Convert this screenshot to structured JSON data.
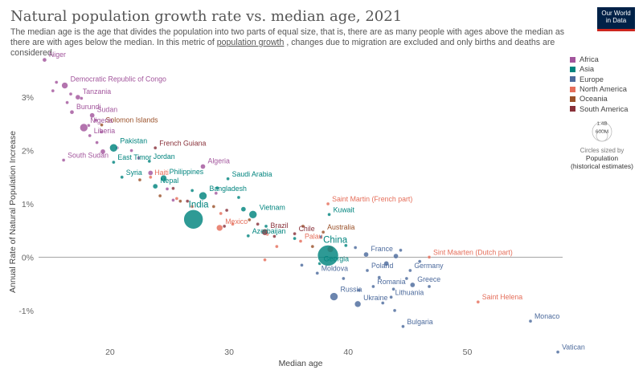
{
  "header": {
    "title": "Natural population growth rate vs. median age, 2021",
    "subtitle_part1": "The median age is the age that divides the population into two parts of equal size, that is, there are as many people with ages above the median as there are with ages below the median. In this metric of",
    "subtitle_link": "population growth",
    "subtitle_part2": ", changes due to migration are excluded and only births and deaths are considered.",
    "logo_line1": "Our World",
    "logo_line2": "in Data"
  },
  "legend": {
    "items": [
      {
        "label": "Africa",
        "color": "#a2559c"
      },
      {
        "label": "Asia",
        "color": "#00847e"
      },
      {
        "label": "Europe",
        "color": "#4c6a9c"
      },
      {
        "label": "North America",
        "color": "#e56e5a"
      },
      {
        "label": "Oceania",
        "color": "#9a5129"
      },
      {
        "label": "South America",
        "color": "#883039"
      }
    ],
    "size_big": "1.4B",
    "size_small": "600M",
    "size_note": "Circles sized by",
    "size_title": "Population",
    "size_sub": "(historical estimates)"
  },
  "chart_data": {
    "type": "scatter",
    "title": "Natural population growth rate vs. median age, 2021",
    "xlabel": "Median age",
    "ylabel": "Annual Rate of Natural Population Increase",
    "xlim": [
      14,
      58
    ],
    "ylim": [
      -1.8,
      3.8
    ],
    "xticks": [
      "20",
      "30",
      "40",
      "50"
    ],
    "yticks": [
      "-1%",
      "0%",
      "1%",
      "2%",
      "3%"
    ],
    "grid": "horizontal zero line",
    "legend_position": "right",
    "series": [
      {
        "name": "Africa",
        "color": "#a2559c",
        "points": [
          {
            "label": "Niger",
            "x": 14.5,
            "y": 3.7,
            "r": 2.5
          },
          {
            "label": "Democratic Republic of Congo",
            "x": 16.2,
            "y": 3.22,
            "r": 4
          },
          {
            "label": "Tanzania",
            "x": 17.3,
            "y": 3.0,
            "r": 3
          },
          {
            "label": "Burundi",
            "x": 16.8,
            "y": 2.72,
            "r": 2.5
          },
          {
            "label": "Sudan",
            "x": 18.5,
            "y": 2.66,
            "r": 3
          },
          {
            "label": "Nigeria",
            "x": 17.8,
            "y": 2.43,
            "r": 5
          },
          {
            "label": "Liberia",
            "x": 18.3,
            "y": 2.28,
            "r": 2
          },
          {
            "label": "South Sudan",
            "x": 16.1,
            "y": 1.82,
            "r": 2
          },
          {
            "label": "Algeria",
            "x": 27.8,
            "y": 1.7,
            "r": 3
          },
          {
            "label": "",
            "x": 15.5,
            "y": 3.28,
            "r": 2
          },
          {
            "label": "",
            "x": 15.2,
            "y": 3.12,
            "r": 2
          },
          {
            "label": "",
            "x": 16.7,
            "y": 3.06,
            "r": 2
          },
          {
            "label": "",
            "x": 17.6,
            "y": 2.98,
            "r": 2
          },
          {
            "label": "",
            "x": 16.4,
            "y": 2.9,
            "r": 2
          },
          {
            "label": "",
            "x": 18.8,
            "y": 2.57,
            "r": 2
          },
          {
            "label": "",
            "x": 18.2,
            "y": 2.47,
            "r": 2
          },
          {
            "label": "",
            "x": 19.3,
            "y": 2.35,
            "r": 2
          },
          {
            "label": "",
            "x": 18.9,
            "y": 2.15,
            "r": 2
          },
          {
            "label": "",
            "x": 20.6,
            "y": 2.05,
            "r": 2
          },
          {
            "label": "",
            "x": 19.4,
            "y": 1.98,
            "r": 3
          },
          {
            "label": "",
            "x": 21.8,
            "y": 2.0,
            "r": 2
          },
          {
            "label": "",
            "x": 22.4,
            "y": 1.86,
            "r": 2
          },
          {
            "label": "",
            "x": 23.4,
            "y": 1.58,
            "r": 3
          },
          {
            "label": "",
            "x": 24.8,
            "y": 1.28,
            "r": 2
          },
          {
            "label": "",
            "x": 25.3,
            "y": 1.07,
            "r": 2
          },
          {
            "label": "",
            "x": 28.9,
            "y": 1.2,
            "r": 2
          }
        ]
      },
      {
        "name": "Asia",
        "color": "#00847e",
        "points": [
          {
            "label": "Pakistan",
            "x": 20.3,
            "y": 2.05,
            "r": 5
          },
          {
            "label": "East Timor",
            "x": 20.3,
            "y": 1.78,
            "r": 2
          },
          {
            "label": "Jordan",
            "x": 23.3,
            "y": 1.8,
            "r": 2
          },
          {
            "label": "Syria",
            "x": 21.0,
            "y": 1.5,
            "r": 2
          },
          {
            "label": "Philippines",
            "x": 24.5,
            "y": 1.48,
            "r": 4
          },
          {
            "label": "Nepal",
            "x": 23.8,
            "y": 1.33,
            "r": 3
          },
          {
            "label": "Saudi Arabia",
            "x": 29.9,
            "y": 1.47,
            "r": 2
          },
          {
            "label": "Bangladesh",
            "x": 27.8,
            "y": 1.15,
            "r": 5
          },
          {
            "label": "India",
            "x": 27.0,
            "y": 0.71,
            "r": 12
          },
          {
            "label": "Vietnam",
            "x": 32.0,
            "y": 0.8,
            "r": 5
          },
          {
            "label": "Kuwait",
            "x": 38.4,
            "y": 0.8,
            "r": 2
          },
          {
            "label": "Azerbaijan",
            "x": 31.6,
            "y": 0.4,
            "r": 2
          },
          {
            "label": "China",
            "x": 38.3,
            "y": 0.03,
            "r": 13
          },
          {
            "label": "Georgia",
            "x": 37.6,
            "y": -0.12,
            "r": 2
          },
          {
            "label": "",
            "x": 26.9,
            "y": 1.25,
            "r": 2
          },
          {
            "label": "",
            "x": 29.0,
            "y": 1.3,
            "r": 2
          },
          {
            "label": "",
            "x": 30.8,
            "y": 1.12,
            "r": 2
          },
          {
            "label": "",
            "x": 31.2,
            "y": 0.9,
            "r": 3
          },
          {
            "label": "",
            "x": 33.1,
            "y": 0.58,
            "r": 2
          },
          {
            "label": "",
            "x": 35.5,
            "y": 0.35,
            "r": 2
          },
          {
            "label": "",
            "x": 39.8,
            "y": 0.22,
            "r": 2
          }
        ]
      },
      {
        "name": "Europe",
        "color": "#4c6a9c",
        "points": [
          {
            "label": "France",
            "x": 41.5,
            "y": 0.05,
            "r": 3
          },
          {
            "label": "Moldova",
            "x": 37.4,
            "y": -0.3,
            "r": 2
          },
          {
            "label": "Poland",
            "x": 41.6,
            "y": -0.25,
            "r": 2
          },
          {
            "label": "Germany",
            "x": 45.2,
            "y": -0.25,
            "r": 2
          },
          {
            "label": "Romania",
            "x": 42.1,
            "y": -0.55,
            "r": 2
          },
          {
            "label": "Greece",
            "x": 45.4,
            "y": -0.52,
            "r": 3
          },
          {
            "label": "Russia",
            "x": 38.8,
            "y": -0.74,
            "r": 5
          },
          {
            "label": "Ukraine",
            "x": 40.8,
            "y": -0.88,
            "r": 4
          },
          {
            "label": "Lithuania",
            "x": 43.6,
            "y": -0.75,
            "r": 2
          },
          {
            "label": "Bulgaria",
            "x": 44.6,
            "y": -1.3,
            "r": 2
          },
          {
            "label": "Monaco",
            "x": 55.3,
            "y": -1.2,
            "r": 2
          },
          {
            "label": "Vatican",
            "x": 57.6,
            "y": -1.78,
            "r": 2
          },
          {
            "label": "",
            "x": 43.2,
            "y": -0.12,
            "r": 3
          },
          {
            "label": "",
            "x": 44.4,
            "y": 0.13,
            "r": 2
          },
          {
            "label": "",
            "x": 46.0,
            "y": -0.08,
            "r": 2
          },
          {
            "label": "",
            "x": 44.9,
            "y": -0.4,
            "r": 2
          },
          {
            "label": "",
            "x": 46.8,
            "y": -0.55,
            "r": 2
          },
          {
            "label": "",
            "x": 42.6,
            "y": -0.38,
            "r": 2
          },
          {
            "label": "",
            "x": 43.8,
            "y": -0.6,
            "r": 2
          },
          {
            "label": "",
            "x": 40.9,
            "y": -0.62,
            "r": 2
          },
          {
            "label": "",
            "x": 42.9,
            "y": -0.86,
            "r": 2
          },
          {
            "label": "",
            "x": 43.9,
            "y": -1.0,
            "r": 2
          },
          {
            "label": "",
            "x": 39.6,
            "y": -0.4,
            "r": 2
          },
          {
            "label": "",
            "x": 36.1,
            "y": -0.15,
            "r": 2
          },
          {
            "label": "",
            "x": 44.0,
            "y": 0.02,
            "r": 3
          },
          {
            "label": "",
            "x": 40.6,
            "y": 0.18,
            "r": 2
          },
          {
            "label": "",
            "x": 37.7,
            "y": 0.38,
            "r": 2
          }
        ]
      },
      {
        "name": "North America",
        "color": "#e56e5a",
        "points": [
          {
            "label": "Haiti",
            "x": 23.4,
            "y": 1.5,
            "r": 2
          },
          {
            "label": "Saint Martin (French part)",
            "x": 38.3,
            "y": 1.0,
            "r": 2
          },
          {
            "label": "Mexico",
            "x": 29.2,
            "y": 0.55,
            "r": 4
          },
          {
            "label": "Palau",
            "x": 36.0,
            "y": 0.3,
            "r": 2
          },
          {
            "label": "Sint Maarten (Dutch part)",
            "x": 46.8,
            "y": 0.0,
            "r": 2
          },
          {
            "label": "Saint Helena",
            "x": 50.9,
            "y": -0.84,
            "r": 2
          },
          {
            "label": "",
            "x": 25.6,
            "y": 1.1,
            "r": 2
          },
          {
            "label": "",
            "x": 26.9,
            "y": 0.95,
            "r": 2
          },
          {
            "label": "",
            "x": 29.3,
            "y": 0.82,
            "r": 2
          },
          {
            "label": "",
            "x": 30.3,
            "y": 0.62,
            "r": 2
          },
          {
            "label": "",
            "x": 33.2,
            "y": 0.43,
            "r": 2
          },
          {
            "label": "",
            "x": 34.0,
            "y": 0.2,
            "r": 2
          },
          {
            "label": "",
            "x": 33.0,
            "y": -0.05,
            "r": 2
          },
          {
            "label": "",
            "x": 38.5,
            "y": 0.15,
            "r": 4
          }
        ]
      },
      {
        "name": "Oceania",
        "color": "#9a5129",
        "points": [
          {
            "label": "Solomon Islands",
            "x": 19.3,
            "y": 2.48,
            "r": 2
          },
          {
            "label": "Australia",
            "x": 37.9,
            "y": 0.47,
            "r": 2
          },
          {
            "label": "",
            "x": 22.5,
            "y": 1.45,
            "r": 2
          },
          {
            "label": "",
            "x": 24.2,
            "y": 1.15,
            "r": 2
          },
          {
            "label": "",
            "x": 25.9,
            "y": 1.05,
            "r": 2
          },
          {
            "label": "",
            "x": 28.7,
            "y": 0.95,
            "r": 2
          },
          {
            "label": "",
            "x": 31.7,
            "y": 0.7,
            "r": 2
          },
          {
            "label": "",
            "x": 36.2,
            "y": 0.58,
            "r": 2
          },
          {
            "label": "",
            "x": 37.0,
            "y": 0.2,
            "r": 2
          }
        ]
      },
      {
        "name": "South America",
        "color": "#883039",
        "points": [
          {
            "label": "French Guiana",
            "x": 23.8,
            "y": 2.05,
            "r": 2
          },
          {
            "label": "Brazil",
            "x": 33.0,
            "y": 0.47,
            "r": 4
          },
          {
            "label": "Chile",
            "x": 35.5,
            "y": 0.44,
            "r": 2
          },
          {
            "label": "",
            "x": 25.3,
            "y": 1.29,
            "r": 2
          },
          {
            "label": "",
            "x": 26.5,
            "y": 1.05,
            "r": 2
          },
          {
            "label": "",
            "x": 29.8,
            "y": 0.88,
            "r": 2
          },
          {
            "label": "",
            "x": 32.4,
            "y": 0.62,
            "r": 2
          },
          {
            "label": "",
            "x": 33.8,
            "y": 0.39,
            "r": 2
          },
          {
            "label": "",
            "x": 29.6,
            "y": 0.58,
            "r": 2
          }
        ]
      }
    ]
  }
}
